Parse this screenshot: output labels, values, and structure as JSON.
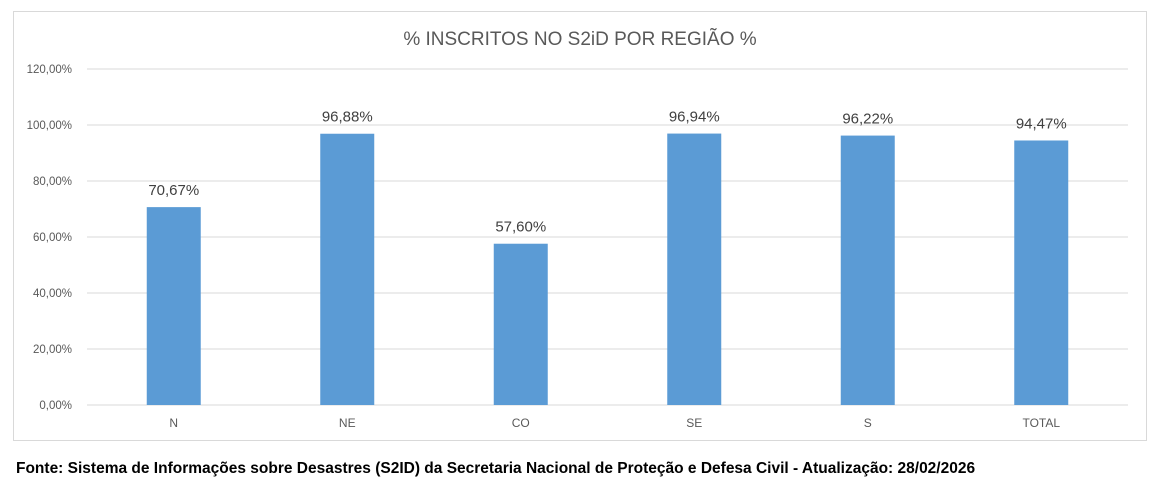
{
  "chart_data": {
    "type": "bar",
    "title": "% INSCRITOS NO S2iD POR REGIÃO %",
    "categories": [
      "N",
      "NE",
      "CO",
      "SE",
      "S",
      "TOTAL"
    ],
    "values": [
      70.67,
      96.88,
      57.6,
      96.94,
      96.22,
      94.47
    ],
    "data_labels": [
      "70,67%",
      "96,88%",
      "57,60%",
      "96,94%",
      "96,22%",
      "94,47%"
    ],
    "yticks": [
      0,
      20,
      40,
      60,
      80,
      100,
      120
    ],
    "ytick_labels": [
      "0,00%",
      "20,00%",
      "40,00%",
      "60,00%",
      "80,00%",
      "100,00%",
      "120,00%"
    ],
    "ylim": [
      0,
      120
    ],
    "xlabel": "",
    "ylabel": "",
    "grid": true,
    "bar_color": "#5b9bd5"
  },
  "footer": {
    "source": "Fonte: Sistema de Informações sobre Desastres (S2ID) da Secretaria Nacional de Proteção e Defesa Civil - Atualização: 28/02/2026"
  }
}
